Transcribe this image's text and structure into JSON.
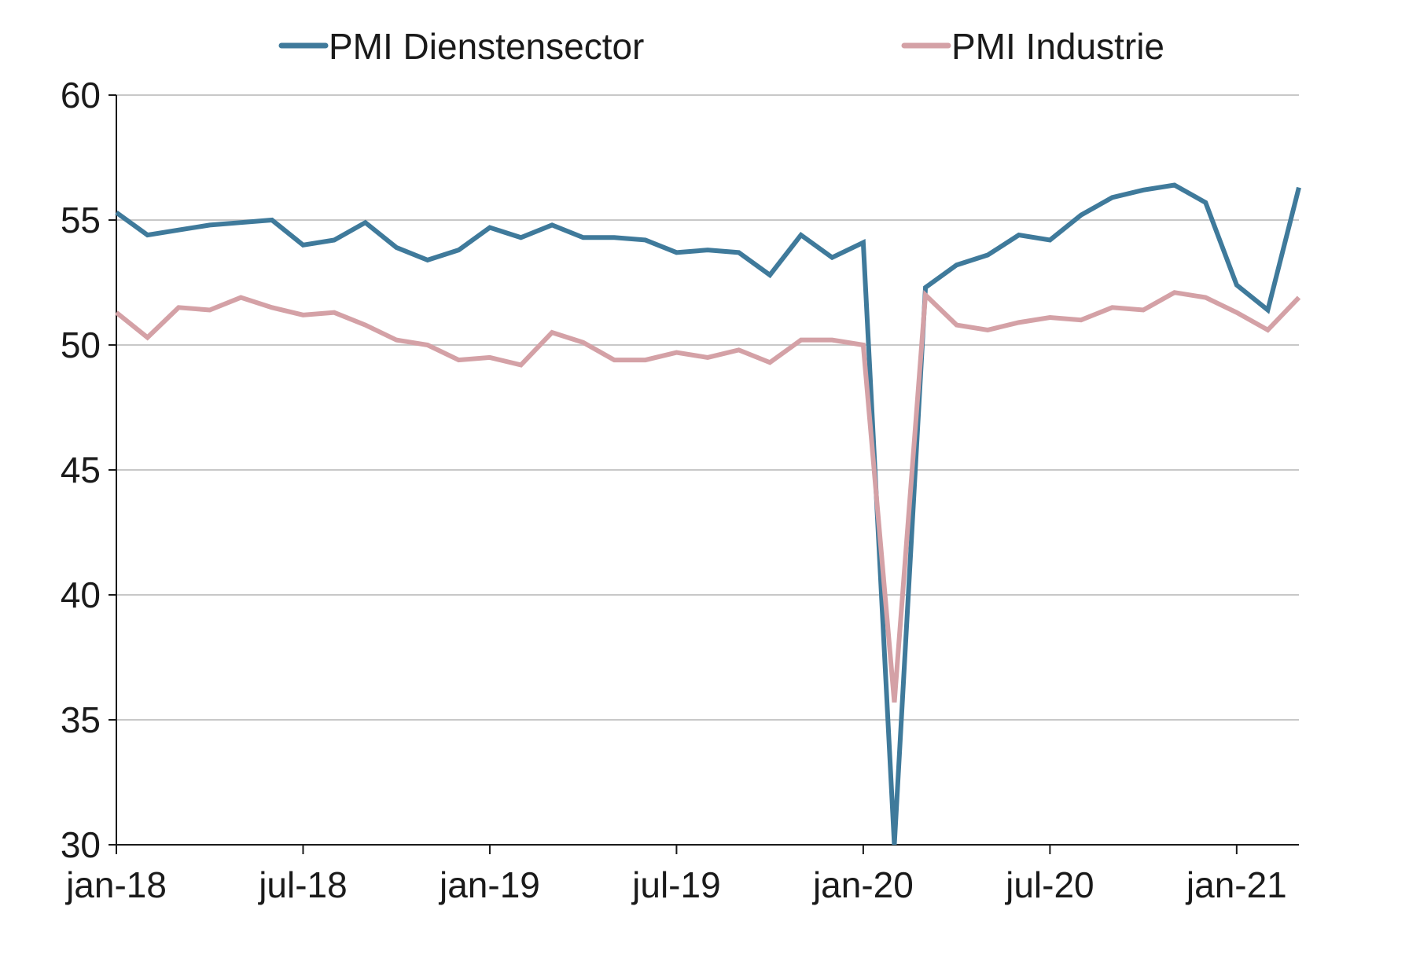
{
  "chart_data": {
    "type": "line",
    "ylim": [
      30,
      60
    ],
    "yticks": [
      30,
      35,
      40,
      45,
      50,
      55,
      60
    ],
    "grid": true,
    "legend_position": "top",
    "x_categories": [
      "jan-18",
      "feb-18",
      "mrt-18",
      "apr-18",
      "mei-18",
      "jun-18",
      "jul-18",
      "aug-18",
      "sep-18",
      "okt-18",
      "nov-18",
      "dec-18",
      "jan-19",
      "feb-19",
      "mrt-19",
      "apr-19",
      "mei-19",
      "jun-19",
      "jul-19",
      "aug-19",
      "sep-19",
      "okt-19",
      "nov-19",
      "dec-19",
      "jan-20",
      "feb-20",
      "mrt-20",
      "apr-20",
      "mei-20",
      "jun-20",
      "jul-20",
      "aug-20",
      "sep-20",
      "okt-20",
      "nov-20",
      "dec-20",
      "jan-21",
      "feb-21",
      "mrt-21"
    ],
    "x_tick_labels": [
      {
        "index": 0,
        "label": "jan-18"
      },
      {
        "index": 6,
        "label": "jul-18"
      },
      {
        "index": 12,
        "label": "jan-19"
      },
      {
        "index": 18,
        "label": "jul-19"
      },
      {
        "index": 24,
        "label": "jan-20"
      },
      {
        "index": 30,
        "label": "jul-20"
      },
      {
        "index": 36,
        "label": "jan-21"
      }
    ],
    "series": [
      {
        "name": "PMI Dienstensector",
        "color": "#3f7a9b",
        "values": [
          55.3,
          54.4,
          54.6,
          54.8,
          54.9,
          55.0,
          54.0,
          54.2,
          54.9,
          53.9,
          53.4,
          53.8,
          54.7,
          54.3,
          54.8,
          54.3,
          54.3,
          54.2,
          53.7,
          53.8,
          53.7,
          52.8,
          54.4,
          53.5,
          54.1,
          30.0,
          52.3,
          53.2,
          53.6,
          54.4,
          54.2,
          55.2,
          55.9,
          56.2,
          56.4,
          55.7,
          52.4,
          51.4,
          56.3
        ]
      },
      {
        "name": "PMI Industrie",
        "color": "#d4a1a6",
        "values": [
          51.3,
          50.3,
          51.5,
          51.4,
          51.9,
          51.5,
          51.2,
          51.3,
          50.8,
          50.2,
          50.0,
          49.4,
          49.5,
          49.2,
          50.5,
          50.1,
          49.4,
          49.4,
          49.7,
          49.5,
          49.8,
          49.3,
          50.2,
          50.2,
          50.0,
          35.7,
          52.0,
          50.8,
          50.6,
          50.9,
          51.1,
          51.0,
          51.5,
          51.4,
          52.1,
          51.9,
          51.3,
          50.6,
          51.9
        ]
      }
    ]
  }
}
